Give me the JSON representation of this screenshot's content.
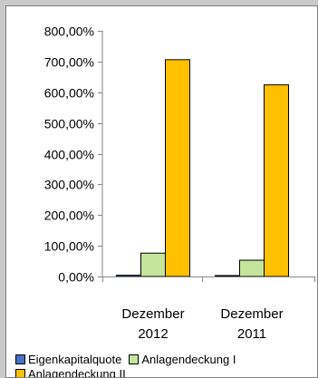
{
  "chart_data": {
    "type": "bar",
    "categories": [
      [
        "Dezember",
        "2012"
      ],
      [
        "Dezember",
        "2011"
      ]
    ],
    "series": [
      {
        "name": "Eigenkapitalquote",
        "values": [
          4,
          3
        ],
        "color": "#4472c4"
      },
      {
        "name": "Anlagendeckung I",
        "values": [
          76,
          53
        ],
        "color": "#c4e59a"
      },
      {
        "name": "Anlagendeckung II",
        "values": [
          706,
          624
        ],
        "color": "#ffc000"
      }
    ],
    "ylim": [
      0,
      800
    ],
    "yticks": [
      0,
      100,
      200,
      300,
      400,
      500,
      600,
      700,
      800
    ],
    "ytick_labels": [
      "0,00%",
      "100,00%",
      "200,00%",
      "300,00%",
      "400,00%",
      "500,00%",
      "600,00%",
      "700,00%",
      "800,00%"
    ],
    "gridlines": false,
    "legend_position": "bottom",
    "title": "",
    "xlabel": "",
    "ylabel": ""
  }
}
